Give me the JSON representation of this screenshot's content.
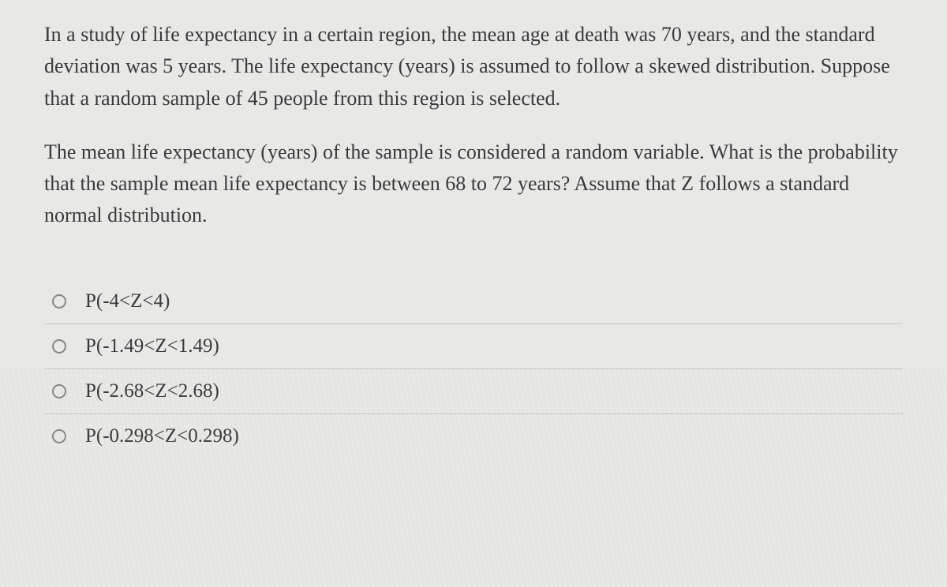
{
  "question": {
    "paragraph1": "In a study of life expectancy in a certain region, the mean age at death was 70 years, and the standard deviation was 5 years. The life expectancy (years) is assumed to follow a skewed distribution. Suppose that a random sample of 45 people from this region is selected.",
    "paragraph2": "The mean life expectancy (years) of the sample is considered a random variable. What is the probability that the sample mean life expectancy is between 68 to 72 years? Assume that Z  follows a standard normal distribution."
  },
  "options": [
    {
      "label": "P(-4<Z<4)"
    },
    {
      "label": "P(-1.49<Z<1.49)"
    },
    {
      "label": "P(-2.68<Z<2.68)"
    },
    {
      "label": "P(-0.298<Z<0.298)"
    }
  ],
  "styling": {
    "background_color": "#e8e9e6",
    "text_color": "#3a3a3a",
    "question_fontsize": 26,
    "option_fontsize": 25,
    "radio_border_color": "#878785",
    "divider_color": "#c8c8c4",
    "font_family": "Georgia, Times New Roman, serif"
  }
}
